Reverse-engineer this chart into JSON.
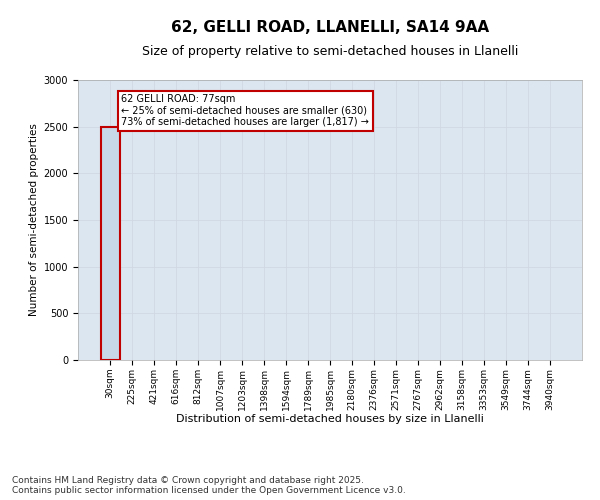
{
  "title1": "62, GELLI ROAD, LLANELLI, SA14 9AA",
  "title2": "Size of property relative to semi-detached houses in Llanelli",
  "xlabel": "Distribution of semi-detached houses by size in Llanelli",
  "ylabel": "Number of semi-detached properties",
  "categories": [
    "30sqm",
    "225sqm",
    "421sqm",
    "616sqm",
    "812sqm",
    "1007sqm",
    "1203sqm",
    "1398sqm",
    "1594sqm",
    "1789sqm",
    "1985sqm",
    "2180sqm",
    "2376sqm",
    "2571sqm",
    "2767sqm",
    "2962sqm",
    "3158sqm",
    "3353sqm",
    "3549sqm",
    "3744sqm",
    "3940sqm"
  ],
  "values": [
    2500,
    0,
    0,
    0,
    0,
    0,
    0,
    0,
    0,
    0,
    0,
    0,
    0,
    0,
    0,
    0,
    0,
    0,
    0,
    0,
    0
  ],
  "bar_color": "#c8d8e8",
  "bar_edge_color": "#aabfcf",
  "highlight_bar_index": 0,
  "highlight_bar_edge_color": "#c00000",
  "annotation_text": "62 GELLI ROAD: 77sqm\n← 25% of semi-detached houses are smaller (630)\n73% of semi-detached houses are larger (1,817) →",
  "annotation_box_facecolor": "#ffffff",
  "annotation_box_edgecolor": "#c00000",
  "ylim": [
    0,
    3000
  ],
  "yticks": [
    0,
    500,
    1000,
    1500,
    2000,
    2500,
    3000
  ],
  "grid_color": "#d0d8e4",
  "bg_color": "#dce6f0",
  "footer1": "Contains HM Land Registry data © Crown copyright and database right 2025.",
  "footer2": "Contains public sector information licensed under the Open Government Licence v3.0.",
  "title1_fontsize": 11,
  "title2_fontsize": 9,
  "tick_fontsize": 6.5,
  "ylabel_fontsize": 7.5,
  "xlabel_fontsize": 8,
  "footer_fontsize": 6.5,
  "annotation_fontsize": 7
}
